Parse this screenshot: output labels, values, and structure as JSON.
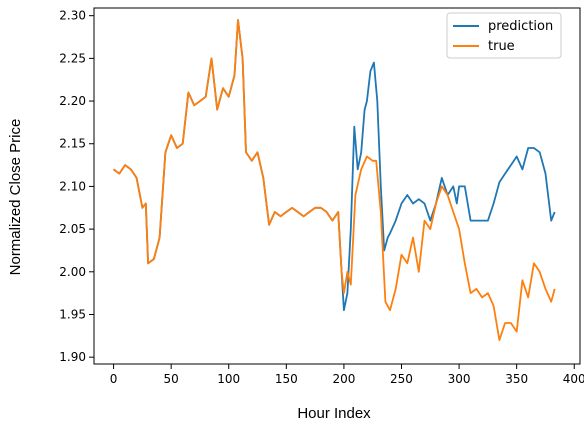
{
  "chart_data": {
    "type": "line",
    "xlabel": "Hour Index",
    "ylabel": "Normalized Close Price",
    "xlim": [
      -17,
      405
    ],
    "ylim": [
      1.892,
      2.309
    ],
    "x_ticks": [
      0,
      50,
      100,
      150,
      200,
      250,
      300,
      350,
      400
    ],
    "y_ticks": [
      1.9,
      1.95,
      2.0,
      2.05,
      2.1,
      2.15,
      2.2,
      2.25,
      2.3
    ],
    "y_tick_labels": [
      "1.90",
      "1.95",
      "2.00",
      "2.05",
      "2.10",
      "2.15",
      "2.20",
      "2.25",
      "2.30"
    ],
    "grid": false,
    "legend_location": "upper right",
    "series": [
      {
        "name": "prediction",
        "color": "#1f77b4",
        "x": [
          0,
          5,
          10,
          15,
          20,
          25,
          28,
          30,
          35,
          40,
          45,
          50,
          55,
          60,
          65,
          70,
          75,
          80,
          85,
          90,
          95,
          100,
          105,
          108,
          112,
          115,
          120,
          125,
          130,
          135,
          140,
          145,
          150,
          155,
          160,
          165,
          170,
          175,
          180,
          185,
          190,
          195,
          198,
          200,
          203,
          206,
          209,
          212,
          215,
          218,
          220,
          223,
          226,
          229,
          232,
          235,
          238,
          240,
          245,
          250,
          255,
          260,
          265,
          270,
          275,
          280,
          285,
          290,
          295,
          298,
          300,
          305,
          310,
          315,
          320,
          325,
          330,
          335,
          340,
          345,
          350,
          355,
          360,
          365,
          370,
          375,
          380,
          383
        ],
        "y": [
          2.12,
          2.115,
          2.125,
          2.12,
          2.11,
          2.075,
          2.08,
          2.01,
          2.015,
          2.04,
          2.14,
          2.16,
          2.145,
          2.15,
          2.21,
          2.195,
          2.2,
          2.205,
          2.25,
          2.19,
          2.215,
          2.205,
          2.23,
          2.295,
          2.25,
          2.14,
          2.13,
          2.14,
          2.11,
          2.055,
          2.07,
          2.065,
          2.07,
          2.075,
          2.07,
          2.065,
          2.07,
          2.075,
          2.075,
          2.07,
          2.06,
          2.07,
          2.0,
          1.955,
          1.975,
          2.05,
          2.17,
          2.12,
          2.14,
          2.19,
          2.2,
          2.235,
          2.245,
          2.2,
          2.1,
          2.025,
          2.04,
          2.045,
          2.06,
          2.08,
          2.09,
          2.08,
          2.085,
          2.08,
          2.06,
          2.08,
          2.11,
          2.09,
          2.1,
          2.08,
          2.1,
          2.1,
          2.06,
          2.06,
          2.06,
          2.06,
          2.08,
          2.105,
          2.115,
          2.125,
          2.135,
          2.12,
          2.145,
          2.145,
          2.14,
          2.115,
          2.06,
          2.07
        ]
      },
      {
        "name": "true",
        "color": "#ff7f0e",
        "x": [
          0,
          5,
          10,
          15,
          20,
          25,
          28,
          30,
          35,
          40,
          45,
          50,
          55,
          60,
          65,
          70,
          75,
          80,
          85,
          90,
          95,
          100,
          105,
          108,
          112,
          115,
          120,
          125,
          130,
          135,
          140,
          145,
          150,
          155,
          160,
          165,
          170,
          175,
          180,
          185,
          190,
          195,
          198,
          200,
          203,
          206,
          210,
          215,
          220,
          225,
          228,
          232,
          236,
          240,
          245,
          250,
          255,
          260,
          265,
          270,
          275,
          280,
          285,
          290,
          295,
          300,
          305,
          310,
          315,
          320,
          325,
          330,
          335,
          340,
          345,
          350,
          355,
          360,
          365,
          370,
          375,
          380,
          383
        ],
        "y": [
          2.12,
          2.115,
          2.125,
          2.12,
          2.11,
          2.075,
          2.08,
          2.01,
          2.015,
          2.04,
          2.14,
          2.16,
          2.145,
          2.15,
          2.21,
          2.195,
          2.2,
          2.205,
          2.25,
          2.19,
          2.215,
          2.205,
          2.23,
          2.295,
          2.25,
          2.14,
          2.13,
          2.14,
          2.11,
          2.055,
          2.07,
          2.065,
          2.07,
          2.075,
          2.07,
          2.065,
          2.07,
          2.075,
          2.075,
          2.07,
          2.06,
          2.07,
          2.0,
          1.975,
          2.0,
          1.985,
          2.09,
          2.12,
          2.135,
          2.13,
          2.13,
          2.07,
          1.965,
          1.955,
          1.98,
          2.02,
          2.01,
          2.04,
          2.0,
          2.06,
          2.05,
          2.08,
          2.1,
          2.09,
          2.07,
          2.05,
          2.01,
          1.975,
          1.98,
          1.97,
          1.975,
          1.96,
          1.92,
          1.94,
          1.94,
          1.93,
          1.99,
          1.97,
          2.01,
          2.0,
          1.98,
          1.965,
          1.98
        ]
      }
    ]
  }
}
